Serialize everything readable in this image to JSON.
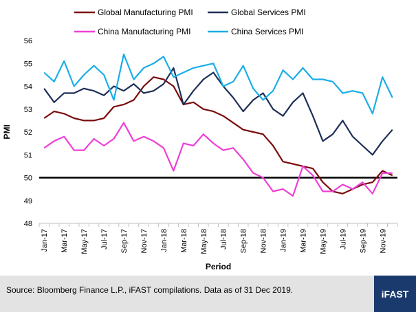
{
  "chart_data": {
    "type": "line",
    "xlabel": "Period",
    "ylabel": "PMI",
    "ylim": [
      48,
      56
    ],
    "yticks": [
      48,
      49,
      50,
      51,
      52,
      53,
      54,
      55,
      56
    ],
    "reference_line": 50,
    "x": [
      "Jan-17",
      "Feb-17",
      "Mar-17",
      "Apr-17",
      "May-17",
      "Jun-17",
      "Jul-17",
      "Aug-17",
      "Sep-17",
      "Oct-17",
      "Nov-17",
      "Dec-17",
      "Jan-18",
      "Feb-18",
      "Mar-18",
      "Apr-18",
      "May-18",
      "Jun-18",
      "Jul-18",
      "Aug-18",
      "Sep-18",
      "Oct-18",
      "Nov-18",
      "Dec-18",
      "Jan-19",
      "Feb-19",
      "Mar-19",
      "Apr-19",
      "May-19",
      "Jun-19",
      "Jul-19",
      "Aug-19",
      "Sep-19",
      "Oct-19",
      "Nov-19",
      "Dec-19"
    ],
    "x_tick_labels": [
      "Jan-17",
      "Mar-17",
      "May-17",
      "Jul-17",
      "Sep-17",
      "Nov-17",
      "Jan-18",
      "Mar-18",
      "May-18",
      "Jul-18",
      "Sep-18",
      "Nov-18",
      "Jan-19",
      "Mar-19",
      "May-19",
      "Jul-19",
      "Sep-19",
      "Nov-19"
    ],
    "legend_position": "top",
    "series": [
      {
        "name": "Global Manufacturing PMI",
        "color": "#7a0c0c",
        "values": [
          52.6,
          52.9,
          52.8,
          52.6,
          52.5,
          52.5,
          52.6,
          53.1,
          53.2,
          53.4,
          54.0,
          54.4,
          54.3,
          54.0,
          53.2,
          53.3,
          53.0,
          52.9,
          52.7,
          52.4,
          52.1,
          52.0,
          51.9,
          51.4,
          50.7,
          50.6,
          50.5,
          50.4,
          49.8,
          49.4,
          49.3,
          49.5,
          49.7,
          49.8,
          50.3,
          50.1
        ]
      },
      {
        "name": "Global Services PMI",
        "color": "#1e2f57",
        "values": [
          53.9,
          53.3,
          53.7,
          53.7,
          53.9,
          53.8,
          53.6,
          54.0,
          53.8,
          54.1,
          53.7,
          53.8,
          54.1,
          54.8,
          53.2,
          53.8,
          54.3,
          54.6,
          54.0,
          53.5,
          52.9,
          53.4,
          53.7,
          53.0,
          52.7,
          53.3,
          53.7,
          52.7,
          51.6,
          51.9,
          52.5,
          51.8,
          51.4,
          51.0,
          51.6,
          52.1
        ]
      },
      {
        "name": "China Manufacturing PMI",
        "color": "#ee3fd6",
        "values": [
          51.3,
          51.6,
          51.8,
          51.2,
          51.2,
          51.7,
          51.4,
          51.7,
          52.4,
          51.6,
          51.8,
          51.6,
          51.3,
          50.3,
          51.5,
          51.4,
          51.9,
          51.5,
          51.2,
          51.3,
          50.8,
          50.2,
          50.0,
          49.4,
          49.5,
          49.2,
          50.5,
          50.1,
          49.4,
          49.4,
          49.7,
          49.5,
          49.8,
          49.3,
          50.2,
          50.2
        ]
      },
      {
        "name": "China Services PMI",
        "color": "#1aaee6",
        "values": [
          54.6,
          54.2,
          55.1,
          54.0,
          54.5,
          54.9,
          54.5,
          53.4,
          55.4,
          54.3,
          54.8,
          55.0,
          55.3,
          54.4,
          54.6,
          54.8,
          54.9,
          55.0,
          54.0,
          54.2,
          54.9,
          53.9,
          53.4,
          53.8,
          54.7,
          54.3,
          54.8,
          54.3,
          54.3,
          54.2,
          53.7,
          53.8,
          53.7,
          52.8,
          54.4,
          53.5
        ]
      }
    ]
  },
  "footer": {
    "source": "Source: Bloomberg Finance L.P., iFAST compilations. Data as of 31 Dec 2019.",
    "logo": "iFAST"
  }
}
